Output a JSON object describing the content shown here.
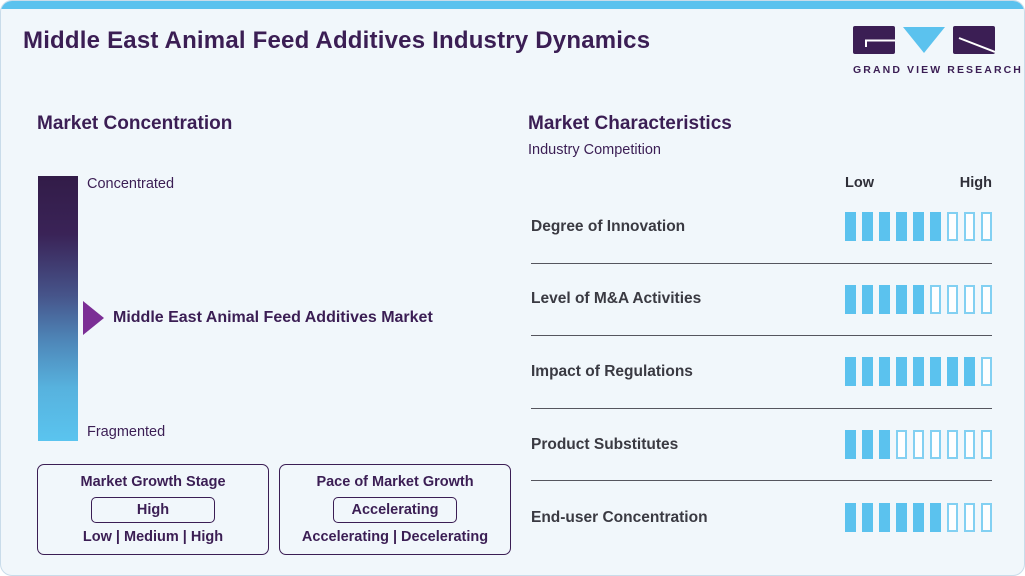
{
  "header": {
    "title": "Middle East Animal Feed Additives Industry Dynamics",
    "logo_text": "GRAND VIEW RESEARCH"
  },
  "market_concentration": {
    "heading": "Market Concentration",
    "top_label": "Concentrated",
    "bottom_label": "Fragmented",
    "pointer_label": "Middle East Animal Feed Additives Market"
  },
  "growth_stage_box": {
    "title": "Market Growth Stage",
    "value": "High",
    "options": "Low | Medium | High"
  },
  "pace_box": {
    "title": "Pace of Market Growth",
    "value": "Accelerating",
    "options": "Accelerating | Decelerating"
  },
  "market_characteristics": {
    "heading": "Market Characteristics",
    "subheading": "Industry Competition",
    "scale_low": "Low",
    "scale_high": "High",
    "rows": [
      {
        "label": "Degree of Innovation",
        "filled": 6,
        "total": 9
      },
      {
        "label": "Level of M&A Activities",
        "filled": 5,
        "total": 9
      },
      {
        "label": "Impact of Regulations",
        "filled": 8,
        "total": 9
      },
      {
        "label": "Product Substitutes",
        "filled": 3,
        "total": 9
      },
      {
        "label": "End-user Concentration",
        "filled": 6,
        "total": 9
      }
    ]
  },
  "colors": {
    "accent_blue": "#5BC2EE",
    "dark_purple": "#3B1E54",
    "arrow_purple": "#7B2E95",
    "gradient_top": "#321C48",
    "gradient_bottom": "#5AC4EF",
    "background": "#F1F7FB",
    "row_label": "#3A3A42",
    "divider": "#55565E"
  },
  "chart_data": {
    "type": "bar",
    "title": "Market Characteristics",
    "subtitle": "Industry Competition",
    "categories": [
      "Degree of Innovation",
      "Level of M&A Activities",
      "Impact of Regulations",
      "Product Substitutes",
      "End-user Concentration"
    ],
    "values": [
      6,
      5,
      8,
      3,
      6
    ],
    "value_scale": {
      "min": 0,
      "max": 9,
      "segments": 9,
      "min_label": "Low",
      "max_label": "High"
    },
    "legend_position": "none",
    "grid": false,
    "annotations": [
      "Market Growth Stage: High (options Low | Medium | High)",
      "Pace of Market Growth: Accelerating (options Accelerating | Decelerating)",
      "Concentration scale from Concentrated (top) to Fragmented (bottom); arrow marks Middle East Animal Feed Additives Market near the middle"
    ]
  }
}
